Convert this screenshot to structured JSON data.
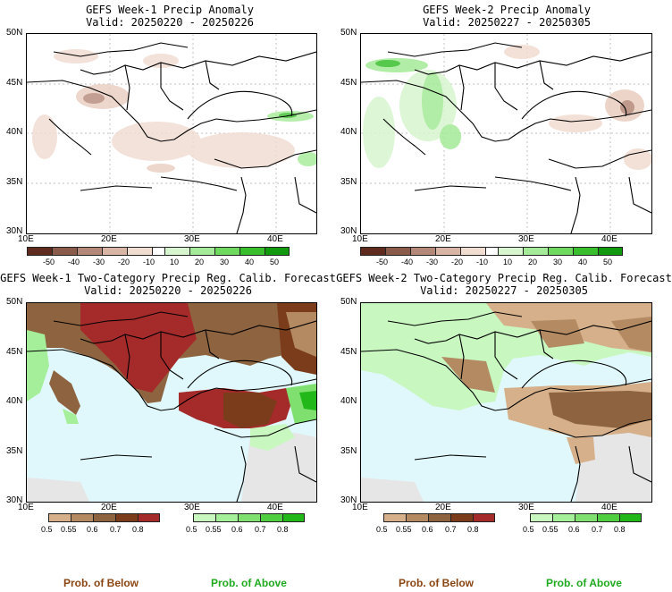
{
  "panels": [
    {
      "title": "GEFS Week-1 Precip Anomaly",
      "valid": "Valid: 20250220 - 20250226"
    },
    {
      "title": "GEFS Week-2 Precip Anomaly",
      "valid": "Valid: 20250227 - 20250305"
    },
    {
      "title": "GEFS Week-1 Two-Category Precip Reg. Calib. Forecast",
      "valid": "Valid: 20250220 - 20250226"
    },
    {
      "title": "GEFS Week-2 Two-Category Precip Reg. Calib. Forecast",
      "valid": "Valid: 20250227 - 20250305"
    }
  ],
  "lat_ticks": [
    "50N",
    "45N",
    "40N",
    "35N",
    "30N"
  ],
  "lon_ticks": [
    "10E",
    "20E",
    "30E",
    "40E"
  ],
  "anomaly_scale": {
    "labels": [
      "-50",
      "-40",
      "-30",
      "-20",
      "-10",
      "10",
      "20",
      "30",
      "40",
      "50"
    ],
    "colors": [
      "#5e2b1e",
      "#8a5a4a",
      "#b48878",
      "#d9b5a6",
      "#f1dcd2",
      "#ffffff",
      "#d6f5cf",
      "#a5ea98",
      "#6fd95f",
      "#39bf2d",
      "#129a0f"
    ]
  },
  "below_scale": {
    "labels": [
      "0.5",
      "0.55",
      "0.6",
      "0.7",
      "0.8"
    ],
    "colors": [
      "#d5b08a",
      "#b48a63",
      "#8e6440",
      "#7a3c1b",
      "#a52a2a"
    ]
  },
  "above_scale": {
    "labels": [
      "0.5",
      "0.55",
      "0.6",
      "0.7",
      "0.8"
    ],
    "colors": [
      "#c8f7c0",
      "#a6ef9a",
      "#7fe070",
      "#4fcf3f",
      "#22b81a"
    ]
  },
  "footer": {
    "below": "Prob. of Below",
    "above": "Prob. of Above"
  },
  "colors": {
    "below_text": "#8b4513",
    "above_text": "#1faa1f",
    "sea": "#e0f8fb"
  }
}
